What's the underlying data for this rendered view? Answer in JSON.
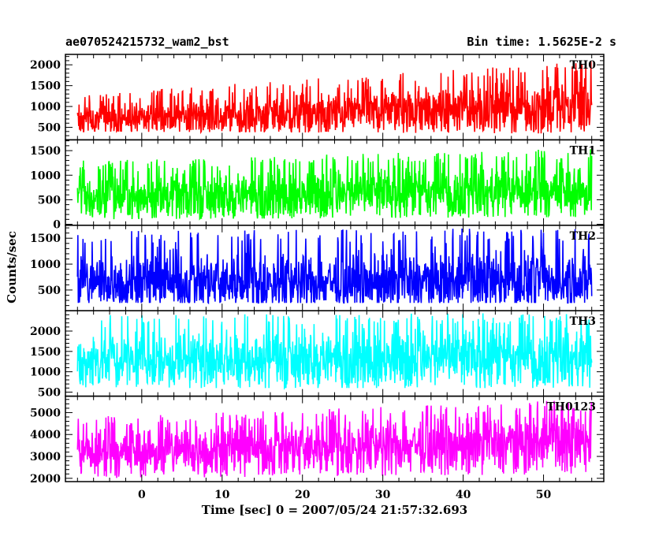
{
  "header": {
    "file_name": "ae070524215732_wam2_bst",
    "bin_time": "Bin time: 1.5625E-2 s"
  },
  "chart_data": {
    "type": "line",
    "xlabel": "Time [sec] 0 = 2007/05/24 21:57:32.693",
    "ylabel": "Counts/sec",
    "xlim": [
      -9.5,
      57.5
    ],
    "x_data_range": [
      -8,
      56
    ],
    "xticks": [
      0,
      10,
      20,
      30,
      40,
      50
    ],
    "panels": [
      {
        "name": "TH0",
        "color": "#ff0000",
        "ylim": [
          200,
          2250
        ],
        "yticks": [
          500,
          1000,
          1500,
          2000
        ],
        "trend": {
          "start": 700,
          "end": 1050
        },
        "envelope": {
          "low_start": 400,
          "low_end": 350,
          "high_start": 1300,
          "high_end": 2100
        }
      },
      {
        "name": "TH1",
        "color": "#00ff00",
        "ylim": [
          -20,
          1720
        ],
        "yticks": [
          0,
          500,
          1000,
          1500
        ],
        "trend": {
          "start": 550,
          "end": 700
        },
        "envelope": {
          "low_start": 100,
          "low_end": 150,
          "high_start": 1300,
          "high_end": 1550
        }
      },
      {
        "name": "TH2",
        "color": "#0000ff",
        "ylim": [
          100,
          1750
        ],
        "yticks": [
          500,
          1000,
          1500
        ],
        "trend": {
          "start": 650,
          "end": 700
        },
        "envelope": {
          "low_start": 250,
          "low_end": 250,
          "high_start": 1650,
          "high_end": 1700
        }
      },
      {
        "name": "TH3",
        "color": "#00ffff",
        "ylim": [
          400,
          2500
        ],
        "yticks": [
          500,
          1000,
          1500,
          2000
        ],
        "trend": {
          "start": 1300,
          "end": 1350
        },
        "envelope": {
          "low_start": 600,
          "low_end": 600,
          "high_start": 2400,
          "high_end": 2450
        }
      },
      {
        "name": "TH0123",
        "color": "#ff00ff",
        "ylim": [
          1850,
          5750
        ],
        "yticks": [
          2000,
          3000,
          4000,
          5000
        ],
        "trend": {
          "start": 3200,
          "end": 3750
        },
        "envelope": {
          "low_start": 2000,
          "low_end": 2200,
          "high_start": 4800,
          "high_end": 5600
        }
      }
    ]
  }
}
